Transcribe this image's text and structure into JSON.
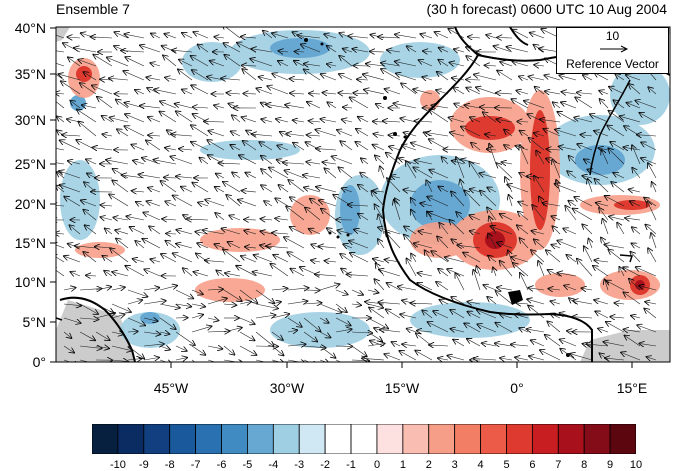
{
  "title_left": "Ensemble 7",
  "title_right": "(30 h forecast) 0600 UTC 10 Aug 2004",
  "map": {
    "region_lon": [
      -57,
      20
    ],
    "region_lat": [
      0,
      40
    ],
    "lat_ticks": [
      "0°",
      "5°N",
      "10°N",
      "15°N",
      "20°N",
      "25°N",
      "30°N",
      "35°N",
      "40°N"
    ],
    "lon_ticks": [
      "45°W",
      "30°W",
      "15°W",
      "0°",
      "15°E"
    ],
    "coastline_color": "#000000",
    "land_mask_color": "#cccccc"
  },
  "reference_vector": {
    "value": "10",
    "label": "Reference Vector"
  },
  "colorbar": {
    "labels": [
      "-10",
      "-9",
      "-8",
      "-7",
      "-6",
      "-5",
      "-4",
      "-3",
      "-2",
      "-1",
      "0",
      "1",
      "2",
      "3",
      "4",
      "5",
      "6",
      "7",
      "8",
      "9",
      "10"
    ],
    "colors": [
      "#08203f",
      "#0a2c62",
      "#113f80",
      "#1a5a9c",
      "#2a71b1",
      "#3f8bc2",
      "#67a8d3",
      "#9fcfe3",
      "#cfe8f3",
      "#ffffff",
      "#ffffff",
      "#fde0e0",
      "#f9bdb2",
      "#f79e88",
      "#f27e66",
      "#eb5b47",
      "#de3a2f",
      "#c81e22",
      "#a8101b",
      "#830c18",
      "#5c0710"
    ]
  }
}
